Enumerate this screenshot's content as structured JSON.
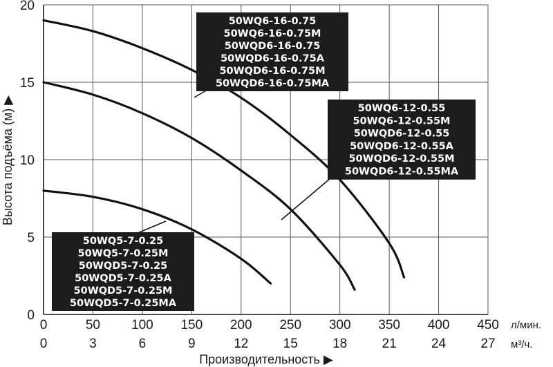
{
  "chart_data": {
    "type": "line",
    "ylabel": "Высота подъёма (м) ▶",
    "xlabel": "Производительность ▶",
    "x_unit_primary": "л/мин.",
    "x_unit_secondary": "м³/ч.",
    "xlim": [
      0,
      450
    ],
    "ylim": [
      0,
      20
    ],
    "x_ticks_lpm": [
      0,
      50,
      100,
      150,
      200,
      250,
      300,
      350,
      400,
      450
    ],
    "x_ticks_m3h": [
      "0",
      "3",
      "6",
      "9",
      "12",
      "15",
      "18",
      "21",
      "24",
      "27"
    ],
    "y_ticks": [
      0,
      5,
      10,
      15,
      20
    ],
    "grid": true,
    "series": [
      {
        "name": "50WQ6-16-0.75",
        "label_lines": [
          "50WQ6-16-0.75",
          "50WQ6-16-0.75M",
          "50WQD6-16-0.75",
          "50WQD6-16-0.75A",
          "50WQD6-16-0.75M",
          "50WQD6-16-0.75MA"
        ],
        "x": [
          0,
          50,
          100,
          150,
          200,
          250,
          300,
          350,
          365
        ],
        "y": [
          19,
          18.3,
          17.2,
          15.8,
          14,
          11.6,
          8.7,
          4.6,
          2.4
        ]
      },
      {
        "name": "50WQ6-12-0.55",
        "label_lines": [
          "50WQ6-12-0.55",
          "50WQ6-12-0.55M",
          "50WQD6-12-0.55",
          "50WQD6-12-0.55A",
          "50WQD6-12-0.55M",
          "50WQD6-12-0.55MA"
        ],
        "x": [
          0,
          50,
          100,
          150,
          200,
          250,
          300,
          315
        ],
        "y": [
          15,
          14.2,
          13,
          11.4,
          9.3,
          6.8,
          3.2,
          1.6
        ]
      },
      {
        "name": "50WQ5-7-0.25",
        "label_lines": [
          "50WQ5-7-0.25",
          "50WQ5-7-0.25M",
          "50WQD5-7-0.25",
          "50WQD5-7-0.25A",
          "50WQD5-7-0.25M",
          "50WQD5-7-0.25MA"
        ],
        "x": [
          0,
          50,
          100,
          150,
          200,
          230
        ],
        "y": [
          8,
          7.6,
          6.8,
          5.5,
          3.6,
          2
        ]
      }
    ]
  }
}
